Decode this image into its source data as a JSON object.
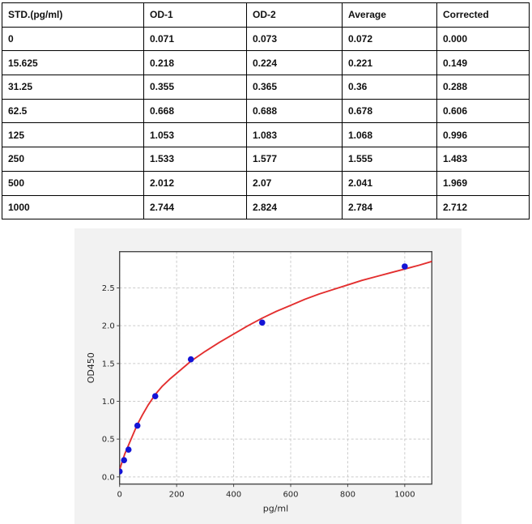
{
  "table": {
    "headers": [
      "STD.(pg/ml)",
      "OD-1",
      "OD-2",
      "Average",
      "Corrected"
    ],
    "rows": [
      [
        "0",
        "0.071",
        "0.073",
        "0.072",
        "0.000"
      ],
      [
        "15.625",
        "0.218",
        "0.224",
        "0.221",
        "0.149"
      ],
      [
        "31.25",
        "0.355",
        "0.365",
        "0.36",
        "0.288"
      ],
      [
        "62.5",
        "0.668",
        "0.688",
        "0.678",
        "0.606"
      ],
      [
        "125",
        "1.053",
        "1.083",
        "1.068",
        "0.996"
      ],
      [
        "250",
        "1.533",
        "1.577",
        "1.555",
        "1.483"
      ],
      [
        "500",
        "2.012",
        "2.07",
        "2.041",
        "1.969"
      ],
      [
        "1000",
        "2.744",
        "2.824",
        "2.784",
        "2.712"
      ]
    ]
  },
  "chart_data": {
    "type": "scatter",
    "title": "",
    "xlabel": "pg/ml",
    "ylabel": "OD450",
    "xlim": [
      0,
      1095
    ],
    "ylim": [
      -0.095,
      2.98
    ],
    "x_ticks": [
      0,
      200,
      400,
      600,
      800,
      1000
    ],
    "y_ticks": [
      0.0,
      0.5,
      1.0,
      1.5,
      2.0,
      2.5
    ],
    "grid": true,
    "legend": "none",
    "series": [
      {
        "name": "standard-points",
        "type": "scatter",
        "color": "#1414d6",
        "x": [
          0,
          15.625,
          31.25,
          62.5,
          125,
          250,
          500,
          1000
        ],
        "y": [
          0.072,
          0.221,
          0.36,
          0.678,
          1.068,
          1.555,
          2.041,
          2.784
        ]
      },
      {
        "name": "fit-curve",
        "type": "line",
        "color": "#e32f2f",
        "x": [
          0,
          8,
          18,
          30,
          45,
          62,
          80,
          100,
          125,
          150,
          175,
          200,
          250,
          300,
          350,
          400,
          450,
          500,
          550,
          600,
          650,
          700,
          750,
          800,
          850,
          900,
          950,
          1000,
          1050,
          1095
        ],
        "y": [
          0.09,
          0.19,
          0.3,
          0.41,
          0.54,
          0.69,
          0.82,
          0.95,
          1.09,
          1.2,
          1.29,
          1.37,
          1.53,
          1.66,
          1.78,
          1.89,
          2.0,
          2.1,
          2.19,
          2.27,
          2.35,
          2.42,
          2.48,
          2.54,
          2.6,
          2.65,
          2.7,
          2.75,
          2.8,
          2.85
        ]
      }
    ],
    "colors": {
      "figure_bg": "#f2f2f2",
      "plot_bg": "#ffffff",
      "grid": "#cbcbcb",
      "spine": "#4a4a4a",
      "tick_label": "#262626"
    }
  }
}
